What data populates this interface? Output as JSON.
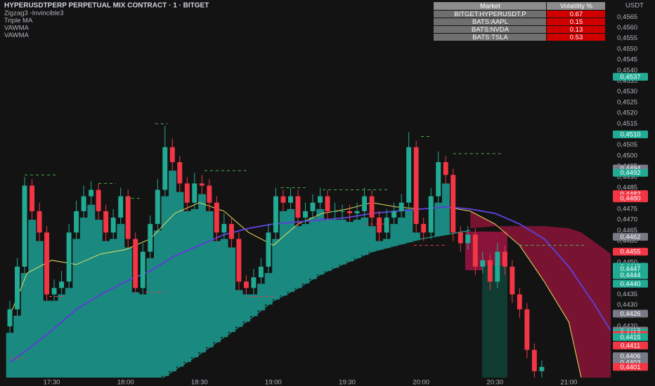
{
  "chart_data": {
    "type": "candlestick",
    "title": "HYPERUSDTPERP PERPETUAL MIX CONTRACT · 1 · BITGET",
    "indicators": [
      "Zigzag3 -Invincible3",
      "Triple MA",
      "VAWMA",
      "VAWMA"
    ],
    "unit": "USDT",
    "up_color": "#22ab94",
    "down_color": "#f23645",
    "grid": false,
    "xlim": [
      "17:09",
      "21:17"
    ],
    "xticks": [
      "17:30",
      "18:00",
      "18:30",
      "19:00",
      "19:30",
      "20:00",
      "20:30",
      "21:00"
    ],
    "ylim": [
      0.4396,
      0.4573
    ],
    "yticks": [
      {
        "value": 0.442,
        "label": "0,4420"
      },
      {
        "value": 0.4425,
        "label": "0,4425"
      },
      {
        "value": 0.443,
        "label": "0,4430"
      },
      {
        "value": 0.4435,
        "label": "0,4435"
      },
      {
        "value": 0.444,
        "label": "0,4440"
      },
      {
        "value": 0.4445,
        "label": "0,4445"
      },
      {
        "value": 0.445,
        "label": "0,4450"
      },
      {
        "value": 0.4455,
        "label": "0,4455"
      },
      {
        "value": 0.446,
        "label": "0,4460"
      },
      {
        "value": 0.4465,
        "label": "0,4465"
      },
      {
        "value": 0.447,
        "label": "0,4470"
      },
      {
        "value": 0.4475,
        "label": "0,4475"
      },
      {
        "value": 0.448,
        "label": "0,4480"
      },
      {
        "value": 0.4485,
        "label": "0,4485"
      },
      {
        "value": 0.449,
        "label": "0,4490"
      },
      {
        "value": 0.4495,
        "label": "0,4495"
      },
      {
        "value": 0.45,
        "label": "0,4500"
      },
      {
        "value": 0.4505,
        "label": "0,4505"
      },
      {
        "value": 0.451,
        "label": "0,4510"
      },
      {
        "value": 0.4515,
        "label": "0,4515"
      },
      {
        "value": 0.452,
        "label": "0,4520"
      },
      {
        "value": 0.4525,
        "label": "0,4525"
      },
      {
        "value": 0.453,
        "label": "0,4530"
      },
      {
        "value": 0.4535,
        "label": "0,4535"
      },
      {
        "value": 0.454,
        "label": "0,4540"
      },
      {
        "value": 0.4545,
        "label": "0,4545"
      },
      {
        "value": 0.455,
        "label": "0,4550"
      },
      {
        "value": 0.4555,
        "label": "0,4555"
      },
      {
        "value": 0.456,
        "label": "0,4560"
      },
      {
        "value": 0.4565,
        "label": "0,4565"
      }
    ],
    "x": [
      "17:13",
      "17:16",
      "17:19",
      "17:22",
      "17:25",
      "17:28",
      "17:31",
      "17:34",
      "17:37",
      "17:40",
      "17:43",
      "17:46",
      "17:49",
      "17:52",
      "17:55",
      "17:58",
      "18:01",
      "18:04",
      "18:07",
      "18:10",
      "18:13",
      "18:16",
      "18:19",
      "18:22",
      "18:25",
      "18:28",
      "18:31",
      "18:34",
      "18:37",
      "18:40",
      "18:43",
      "18:46",
      "18:49",
      "18:52",
      "18:55",
      "18:58",
      "19:01",
      "19:04",
      "19:07",
      "19:10",
      "19:13",
      "19:16",
      "19:19",
      "19:22",
      "19:25",
      "19:28",
      "19:31",
      "19:34",
      "19:37",
      "19:40",
      "19:43",
      "19:46",
      "19:49",
      "19:52",
      "19:55",
      "19:58",
      "20:01",
      "20:04",
      "20:07",
      "20:10",
      "20:13",
      "20:16",
      "20:19",
      "20:22",
      "20:25",
      "20:28",
      "20:31",
      "20:34",
      "20:37",
      "20:40",
      "20:43",
      "20:46",
      "20:49"
    ],
    "candles": [
      [
        0.442,
        0.4432,
        0.4417,
        0.4428
      ],
      [
        0.4428,
        0.4452,
        0.4425,
        0.4448
      ],
      [
        0.4448,
        0.449,
        0.4445,
        0.4486
      ],
      [
        0.4486,
        0.4489,
        0.447,
        0.4474
      ],
      [
        0.4474,
        0.4478,
        0.446,
        0.4464
      ],
      [
        0.4464,
        0.4467,
        0.4432,
        0.4435
      ],
      [
        0.4435,
        0.4442,
        0.4432,
        0.4438
      ],
      [
        0.4438,
        0.4446,
        0.4435,
        0.4441
      ],
      [
        0.4441,
        0.4468,
        0.4438,
        0.4464
      ],
      [
        0.4464,
        0.4479,
        0.4461,
        0.4474
      ],
      [
        0.4474,
        0.4486,
        0.4471,
        0.4481
      ],
      [
        0.4481,
        0.4488,
        0.4477,
        0.4484
      ],
      [
        0.4484,
        0.4487,
        0.447,
        0.4474
      ],
      [
        0.4474,
        0.4477,
        0.446,
        0.4464
      ],
      [
        0.4464,
        0.4475,
        0.4461,
        0.4471
      ],
      [
        0.4471,
        0.4485,
        0.4468,
        0.4481
      ],
      [
        0.4481,
        0.4484,
        0.4457,
        0.4461
      ],
      [
        0.4461,
        0.4464,
        0.4436,
        0.4438
      ],
      [
        0.4438,
        0.4459,
        0.4435,
        0.4455
      ],
      [
        0.4455,
        0.4472,
        0.4452,
        0.4468
      ],
      [
        0.4468,
        0.4489,
        0.4465,
        0.4484
      ],
      [
        0.4484,
        0.4514,
        0.4481,
        0.4504
      ],
      [
        0.4504,
        0.4508,
        0.4493,
        0.4497
      ],
      [
        0.4497,
        0.45,
        0.4483,
        0.4487
      ],
      [
        0.4487,
        0.449,
        0.4474,
        0.4478
      ],
      [
        0.4478,
        0.4492,
        0.4475,
        0.4487
      ],
      [
        0.4487,
        0.4491,
        0.4482,
        0.4486
      ],
      [
        0.4486,
        0.4489,
        0.4474,
        0.4478
      ],
      [
        0.4478,
        0.4481,
        0.446,
        0.4464
      ],
      [
        0.4464,
        0.4473,
        0.4461,
        0.4468
      ],
      [
        0.4468,
        0.4471,
        0.4457,
        0.4461
      ],
      [
        0.4461,
        0.4464,
        0.4437,
        0.4441
      ],
      [
        0.4441,
        0.4444,
        0.4435,
        0.4438
      ],
      [
        0.4438,
        0.4447,
        0.4435,
        0.4443
      ],
      [
        0.4443,
        0.4452,
        0.444,
        0.4448
      ],
      [
        0.4448,
        0.4468,
        0.4445,
        0.4464
      ],
      [
        0.4464,
        0.4485,
        0.4461,
        0.4481
      ],
      [
        0.4481,
        0.4484,
        0.4474,
        0.4478
      ],
      [
        0.4478,
        0.4485,
        0.4475,
        0.4481
      ],
      [
        0.4481,
        0.4484,
        0.4467,
        0.4471
      ],
      [
        0.4471,
        0.4478,
        0.4468,
        0.4474
      ],
      [
        0.4474,
        0.4482,
        0.4471,
        0.4478
      ],
      [
        0.4478,
        0.4485,
        0.4475,
        0.4481
      ],
      [
        0.4481,
        0.4484,
        0.447,
        0.4474
      ],
      [
        0.4474,
        0.4478,
        0.447,
        0.4474
      ],
      [
        0.4474,
        0.4477,
        0.447,
        0.4474
      ],
      [
        0.4474,
        0.4477,
        0.4469,
        0.4473
      ],
      [
        0.4473,
        0.4478,
        0.447,
        0.4474
      ],
      [
        0.4474,
        0.4485,
        0.4471,
        0.4481
      ],
      [
        0.4481,
        0.4484,
        0.4467,
        0.4471
      ],
      [
        0.4471,
        0.4474,
        0.446,
        0.4464
      ],
      [
        0.4464,
        0.4475,
        0.4461,
        0.4471
      ],
      [
        0.4471,
        0.4478,
        0.4468,
        0.4474
      ],
      [
        0.4474,
        0.4482,
        0.4471,
        0.4478
      ],
      [
        0.4478,
        0.4511,
        0.4475,
        0.4504
      ],
      [
        0.4504,
        0.4507,
        0.4464,
        0.4468
      ],
      [
        0.4468,
        0.4471,
        0.446,
        0.4464
      ],
      [
        0.4464,
        0.4485,
        0.4461,
        0.4481
      ],
      [
        0.4481,
        0.4502,
        0.4478,
        0.4497
      ],
      [
        0.4497,
        0.45,
        0.4487,
        0.4491
      ],
      [
        0.4491,
        0.4494,
        0.446,
        0.4464
      ],
      [
        0.4464,
        0.4467,
        0.4455,
        0.4459
      ],
      [
        0.4459,
        0.4467,
        0.4456,
        0.4463
      ],
      [
        0.4463,
        0.4466,
        0.4444,
        0.4448
      ],
      [
        0.4448,
        0.4455,
        0.4445,
        0.4451
      ],
      [
        0.4451,
        0.4454,
        0.4437,
        0.4441
      ],
      [
        0.4441,
        0.4459,
        0.4438,
        0.4455
      ],
      [
        0.4455,
        0.4458,
        0.4444,
        0.4448
      ],
      [
        0.4448,
        0.4451,
        0.4431,
        0.4435
      ],
      [
        0.4435,
        0.4438,
        0.4424,
        0.4428
      ],
      [
        0.4428,
        0.4431,
        0.4405,
        0.4409
      ],
      [
        0.4409,
        0.4412,
        0.4396,
        0.4399
      ],
      [
        0.4399,
        0.4404,
        0.4396,
        0.4401
      ]
    ],
    "cloud": {
      "color": "#1a8a80",
      "x": [
        "17:13",
        "18:15",
        "18:30",
        "18:40",
        "18:50",
        "19:00",
        "19:10",
        "19:20",
        "19:30",
        "19:40",
        "19:50",
        "20:00",
        "20:10",
        "20:20"
      ],
      "lower": [
        0.4396,
        0.4396,
        0.4407,
        0.4415,
        0.4423,
        0.4432,
        0.4438,
        0.4445,
        0.445,
        0.4455,
        0.4458,
        0.4461,
        0.4463,
        0.4465
      ]
    },
    "projection": {
      "color": "#8b1538",
      "x": [
        "20:20",
        "20:30",
        "20:40",
        "20:50",
        "21:00",
        "21:05",
        "21:10",
        "21:17"
      ],
      "upper": [
        0.4466,
        0.4467,
        0.4467,
        0.4467,
        0.4466,
        0.4464,
        0.446,
        0.4454
      ]
    },
    "lines": [
      {
        "color": "#e6df5a",
        "width": 1,
        "x": [
          "17:13",
          "17:20",
          "17:30",
          "17:40",
          "17:50",
          "18:00",
          "18:10",
          "18:20",
          "18:30",
          "18:40",
          "18:50",
          "19:00",
          "19:10",
          "19:20",
          "19:30",
          "19:40",
          "19:50",
          "20:00",
          "20:10",
          "20:20",
          "20:30",
          "20:40",
          "20:50",
          "21:00",
          "21:05"
        ],
        "values": [
          0.4425,
          0.4445,
          0.4451,
          0.4449,
          0.4454,
          0.4456,
          0.4461,
          0.4473,
          0.4478,
          0.4474,
          0.4464,
          0.4458,
          0.4468,
          0.4473,
          0.4475,
          0.4478,
          0.4476,
          0.4475,
          0.4476,
          0.4474,
          0.4468,
          0.4458,
          0.4441,
          0.4422,
          0.4396
        ]
      },
      {
        "color": "#5b3fd1",
        "width": 2,
        "x": [
          "17:13",
          "17:20",
          "17:30",
          "17:40",
          "17:50",
          "18:00",
          "18:10",
          "18:20",
          "18:30",
          "18:40",
          "18:50",
          "19:00",
          "19:10",
          "19:20",
          "19:30",
          "19:40",
          "19:50",
          "20:00",
          "20:10",
          "20:20",
          "20:30",
          "20:40",
          "20:50",
          "21:00",
          "21:10",
          "21:17"
        ],
        "values": [
          0.4403,
          0.4409,
          0.4418,
          0.4428,
          0.4435,
          0.4441,
          0.4446,
          0.4453,
          0.4458,
          0.4463,
          0.4466,
          0.4468,
          0.4469,
          0.447,
          0.4471,
          0.4473,
          0.4474,
          0.4475,
          0.4476,
          0.4475,
          0.4473,
          0.4468,
          0.4461,
          0.4448,
          0.4431,
          0.4418
        ]
      }
    ],
    "levels": [
      {
        "x": [
          "17:19",
          "17:32"
        ],
        "value": 0.4491,
        "color": "#4caf50"
      },
      {
        "x": [
          "17:49",
          "17:56"
        ],
        "value": 0.4487,
        "color": "#4caf50"
      },
      {
        "x": [
          "18:00",
          "18:06"
        ],
        "value": 0.448,
        "color": "#4caf50"
      },
      {
        "x": [
          "18:12",
          "18:17"
        ],
        "value": 0.4515,
        "color": "#4caf50"
      },
      {
        "x": [
          "18:32",
          "18:49"
        ],
        "value": 0.4493,
        "color": "#4caf50"
      },
      {
        "x": [
          "19:03",
          "19:13"
        ],
        "value": 0.4485,
        "color": "#4caf50"
      },
      {
        "x": [
          "19:20",
          "19:47"
        ],
        "value": 0.4484,
        "color": "#4caf50"
      },
      {
        "x": [
          "20:00",
          "20:04"
        ],
        "value": 0.4509,
        "color": "#4caf50"
      },
      {
        "x": [
          "20:13",
          "20:33"
        ],
        "value": 0.4501,
        "color": "#4caf50"
      },
      {
        "x": [
          "20:40",
          "21:07"
        ],
        "value": 0.4458,
        "color": "#4caf50"
      },
      {
        "x": [
          "17:13",
          "17:20"
        ],
        "value": 0.4405,
        "color": "#f23645"
      },
      {
        "x": [
          "17:29",
          "17:36"
        ],
        "value": 0.4434,
        "color": "#f23645"
      },
      {
        "x": [
          "18:08",
          "18:17"
        ],
        "value": 0.4436,
        "color": "#f23645"
      },
      {
        "x": [
          "18:50",
          "19:00"
        ],
        "value": 0.4434,
        "color": "#f23645"
      },
      {
        "x": [
          "19:37",
          "19:45"
        ],
        "value": 0.4468,
        "color": "#f23645"
      },
      {
        "x": [
          "19:57",
          "20:10"
        ],
        "value": 0.4458,
        "color": "#f23645"
      }
    ],
    "price_labels": [
      {
        "value": 0.4537,
        "label": "0,4537",
        "color": "#22ab94"
      },
      {
        "value": 0.451,
        "label": "0,4510",
        "color": "#22ab94"
      },
      {
        "value": 0.4494,
        "label": "0,4494",
        "color": "#787b86"
      },
      {
        "value": 0.4492,
        "label": "0,4492",
        "color": "#22ab94"
      },
      {
        "value": 0.4482,
        "label": "0,4482",
        "color": "#f23645"
      },
      {
        "value": 0.448,
        "label": "0,4480",
        "color": "#f23645"
      },
      {
        "value": 0.4462,
        "label": "0,4462",
        "color": "#787b86"
      },
      {
        "value": 0.4455,
        "label": "0,4455",
        "color": "#f23645"
      },
      {
        "value": 0.4448,
        "label": "0,4448",
        "color": "#22ab94"
      },
      {
        "value": 0.4447,
        "label": "0,4447",
        "color": "#22ab94"
      },
      {
        "value": 0.4444,
        "label": "0,4444",
        "color": "#22ab94"
      },
      {
        "value": 0.444,
        "label": "0,4440",
        "color": "#22ab94"
      },
      {
        "value": 0.4426,
        "label": "0,4426",
        "color": "#787b86"
      },
      {
        "value": 0.4418,
        "label": "0,4418",
        "color": "#787b86"
      },
      {
        "value": 0.4417,
        "label": "0,4417",
        "color": "#22ab94"
      },
      {
        "value": 0.4416,
        "label": "0,4416",
        "color": "#f23645"
      },
      {
        "value": 0.4415,
        "label": "0,4415",
        "color": "#22ab94"
      },
      {
        "value": 0.4411,
        "label": "0,4411",
        "color": "#f23645"
      },
      {
        "value": 0.4406,
        "label": "0,4406",
        "color": "#787b86"
      },
      {
        "value": 0.4403,
        "label": "0,4403",
        "color": "#787b86"
      },
      {
        "value": 0.4401,
        "label": "0,4401",
        "color": "#f23645"
      }
    ],
    "table": {
      "columns": [
        "Market",
        "Volatility %"
      ],
      "rows": [
        [
          "BITGET:HYPERUSDT.P",
          0.67
        ],
        [
          "BATS:AAPL",
          0.15
        ],
        [
          "BATS:NVDA",
          0.13
        ],
        [
          "BATS:TSLA",
          0.53
        ]
      ],
      "header_color": "#8d8d8d",
      "cell_color": "#6f6f6f",
      "value_color": "#d00000"
    }
  }
}
